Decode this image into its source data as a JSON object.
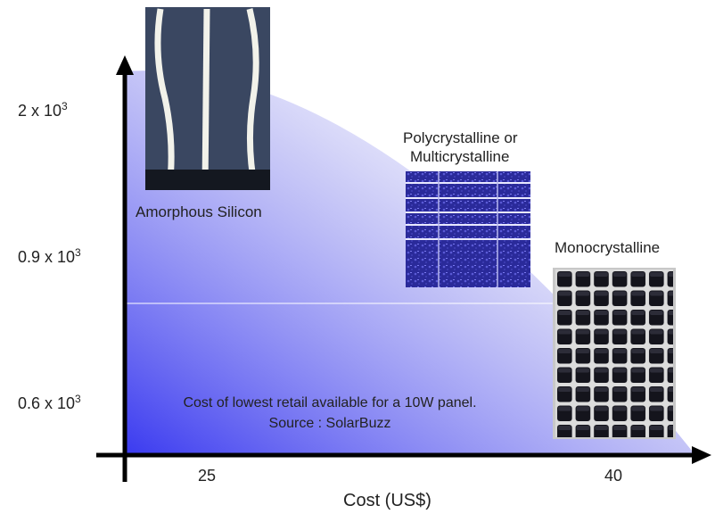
{
  "chart_data": {
    "type": "scatter",
    "title": "",
    "xlabel": "Cost (US$)",
    "ylabel": "",
    "x_ticks": [
      "25",
      "40"
    ],
    "y_ticks": [
      "0.6 x 10",
      "0.9 x 10",
      "2 x 10"
    ],
    "y_tick_exponent": "3",
    "points": [
      {
        "label": "Amorphous Silicon",
        "x": 25,
        "y": 2000
      },
      {
        "label": "Polycrystalline or Multicrystalline",
        "x": 35,
        "y": 900
      },
      {
        "label": "Monocrystalline",
        "x": 40,
        "y": 600
      }
    ],
    "annotation_line1": "Cost of lowest retail available for a 10W panel.",
    "annotation_line2": "Source : SolarBuzz"
  },
  "labels": {
    "amorphous": "Amorphous Silicon",
    "poly_line1": "Polycrystalline or",
    "poly_line2": "Multicrystalline",
    "mono": "Monocrystalline"
  },
  "colors": {
    "gradient_start": "#3a3af0",
    "gradient_end": "#ffffff",
    "axis": "#000000"
  }
}
